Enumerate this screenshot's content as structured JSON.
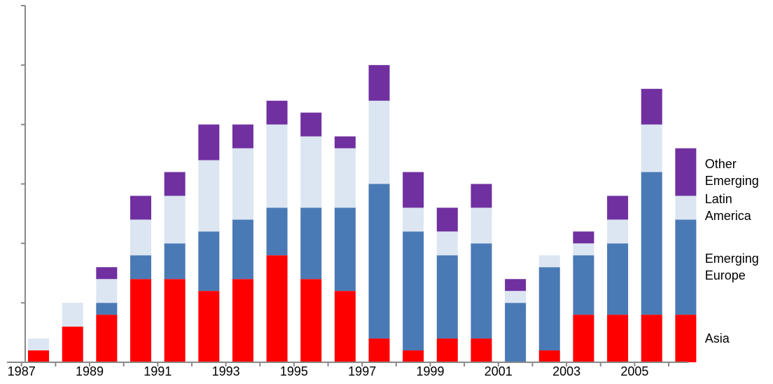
{
  "chart_data": {
    "type": "stacked_bar",
    "categories": [
      "1987",
      null,
      "1989",
      null,
      "1991",
      null,
      "1993",
      null,
      "1995",
      null,
      "1997",
      null,
      "1999",
      null,
      "2001",
      null,
      "2003",
      null,
      "2005",
      null
    ],
    "series": [
      {
        "name": "Asia",
        "color": "#ff0000",
        "values": [
          1,
          3,
          4,
          7,
          7,
          6,
          7,
          9,
          7,
          6,
          2,
          1,
          2,
          2,
          0,
          1,
          4,
          4,
          4,
          4
        ]
      },
      {
        "name": "Emerging Europe",
        "color": "#4a7ab5",
        "values": [
          0,
          0,
          1,
          2,
          3,
          5,
          5,
          4,
          6,
          7,
          13,
          10,
          7,
          8,
          5,
          7,
          5,
          6,
          12,
          8
        ]
      },
      {
        "name": "Latin America",
        "color": "#dce6f2",
        "values": [
          1,
          2,
          2,
          3,
          4,
          6,
          6,
          7,
          6,
          5,
          7,
          2,
          2,
          3,
          1,
          1,
          1,
          2,
          4,
          2
        ]
      },
      {
        "name": "Other Emerging",
        "color": "#7030a0",
        "values": [
          0,
          0,
          1,
          2,
          2,
          3,
          2,
          2,
          2,
          1,
          3,
          3,
          2,
          2,
          1,
          0,
          1,
          2,
          3,
          4
        ]
      }
    ],
    "ylim": [
      0,
      30
    ],
    "yticks": [
      0,
      5,
      10,
      15,
      20,
      25,
      30
    ]
  }
}
